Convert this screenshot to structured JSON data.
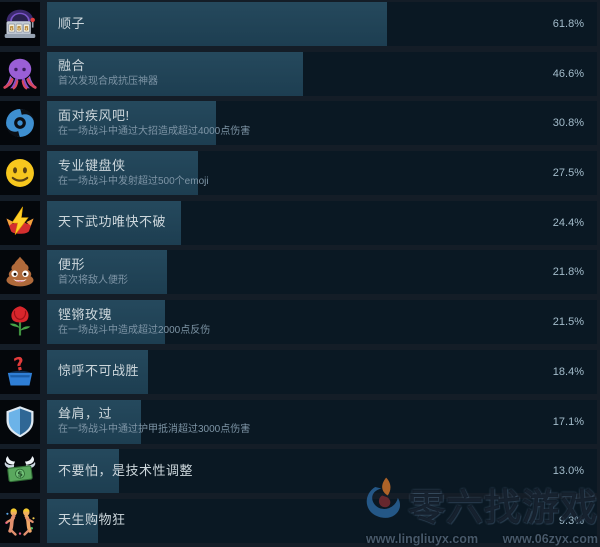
{
  "achievements": [
    {
      "icon": "slot-machine-icon",
      "title": "顺子",
      "desc": "",
      "percent_label": "61.8%",
      "percent_value": 61.8
    },
    {
      "icon": "octopus-icon",
      "title": "融合",
      "desc": "首次发现合成抗压神器",
      "percent_label": "46.6%",
      "percent_value": 46.6
    },
    {
      "icon": "cyclone-icon",
      "title": "面对疾风吧!",
      "desc": "在一场战斗中通过大招造成超过4000点伤害",
      "percent_label": "30.8%",
      "percent_value": 30.8
    },
    {
      "icon": "smiley-icon",
      "title": "专业键盘侠",
      "desc": "在一场战斗中发射超过500个emoji",
      "percent_label": "27.5%",
      "percent_value": 27.5
    },
    {
      "icon": "lightning-icon",
      "title": "天下武功唯快不破",
      "desc": "",
      "percent_label": "24.4%",
      "percent_value": 24.4
    },
    {
      "icon": "poop-icon",
      "title": "便形",
      "desc": "首次将敌人便形",
      "percent_label": "21.8%",
      "percent_value": 21.8
    },
    {
      "icon": "rose-icon",
      "title": "铿锵玫瑰",
      "desc": "在一场战斗中造成超过2000点反伤",
      "percent_label": "21.5%",
      "percent_value": 21.5
    },
    {
      "icon": "question-box-icon",
      "title": "惊呼不可战胜",
      "desc": "",
      "percent_label": "18.4%",
      "percent_value": 18.4
    },
    {
      "icon": "shield-icon",
      "title": "耸肩，过",
      "desc": "在一场战斗中通过护甲抵消超过3000点伤害",
      "percent_label": "17.1%",
      "percent_value": 17.1
    },
    {
      "icon": "money-wings-icon",
      "title": "不要怕，是技术性调整",
      "desc": "",
      "percent_label": "13.0%",
      "percent_value": 13.0
    },
    {
      "icon": "dancers-icon",
      "title": "天生购物狂",
      "desc": "",
      "percent_label": "9.3%",
      "percent_value": 9.3
    }
  ],
  "watermark": {
    "site_name": "零六找游戏",
    "url_left": "www.lingliuyx.com",
    "url_right": "www.06zyx.com"
  },
  "colors": {
    "page_bg": "#141d27",
    "bar_fill": "#20455a",
    "bar_bg": "#0a1823",
    "icon_bg": "#04070b",
    "title_text": "#cdd7dc",
    "desc_text": "#7e95a6",
    "percent_text": "#a3bccb"
  }
}
